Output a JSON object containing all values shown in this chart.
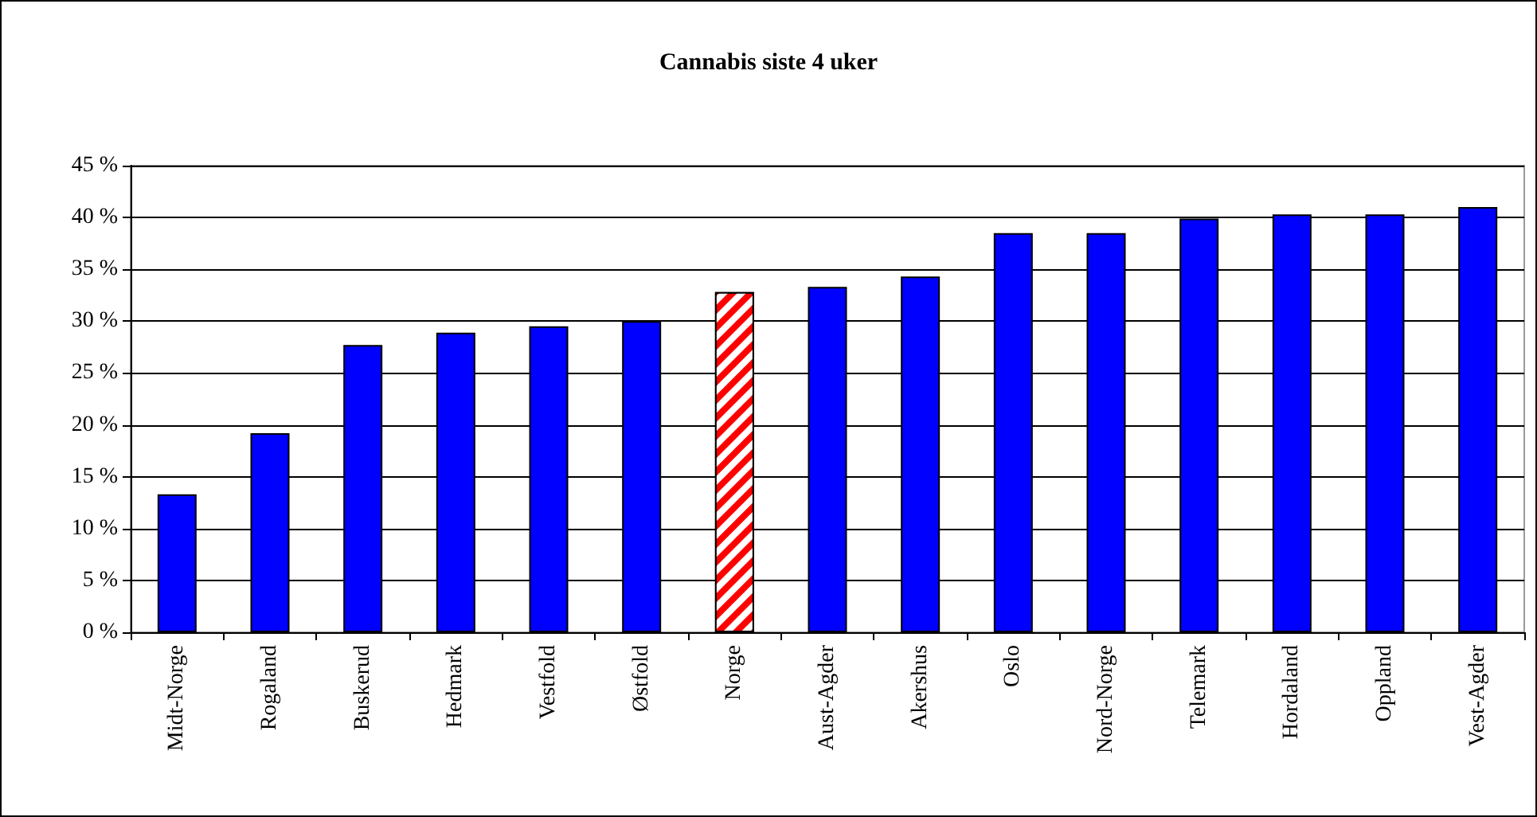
{
  "chart_data": {
    "type": "bar",
    "title": "Cannabis siste 4 uker",
    "categories": [
      "Midt-Norge",
      "Rogaland",
      "Buskerud",
      "Hedmark",
      "Vestfold",
      "Østfold",
      "Norge",
      "Aust-Agder",
      "Akershus",
      "Oslo",
      "Nord-Norge",
      "Telemark",
      "Hordaland",
      "Oppland",
      "Vest-Agder"
    ],
    "values": [
      13.3,
      19.2,
      27.7,
      28.9,
      29.5,
      30.0,
      32.8,
      33.3,
      34.3,
      38.5,
      38.5,
      39.9,
      40.3,
      40.3,
      41.0
    ],
    "colors": [
      "#0000ff",
      "#0000ff",
      "#0000ff",
      "#0000ff",
      "#0000ff",
      "#0000ff",
      "#ff0000",
      "#0000ff",
      "#0000ff",
      "#0000ff",
      "#0000ff",
      "#0000ff",
      "#0000ff",
      "#0000ff",
      "#0000ff"
    ],
    "ylim": [
      0,
      45
    ],
    "yticks": [
      {
        "value": 0,
        "label": "0 %"
      },
      {
        "value": 5,
        "label": "5 %"
      },
      {
        "value": 10,
        "label": "10 %"
      },
      {
        "value": 15,
        "label": "15 %"
      },
      {
        "value": 20,
        "label": "20 %"
      },
      {
        "value": 25,
        "label": "25 %"
      },
      {
        "value": 30,
        "label": "30 %"
      },
      {
        "value": 35,
        "label": "35 %"
      },
      {
        "value": 40,
        "label": "40 %"
      },
      {
        "value": 45,
        "label": "45 %"
      }
    ],
    "grid": "y"
  }
}
